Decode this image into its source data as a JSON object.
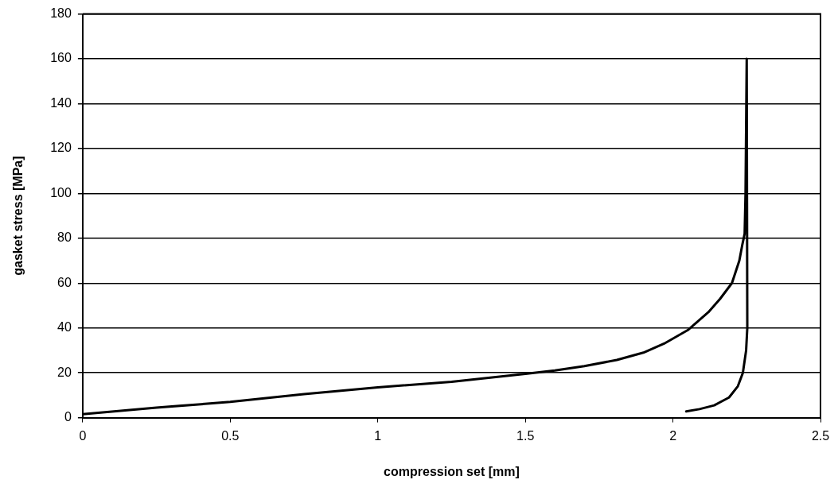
{
  "chart_data": {
    "type": "line",
    "xlabel": "compression set [mm]",
    "ylabel": "gasket stress [MPa]",
    "x": [
      0,
      0.25,
      0.5,
      0.75,
      1,
      1.25,
      1.5,
      1.6,
      1.7,
      1.81,
      1.9,
      1.97,
      2.05,
      2.12,
      2.16,
      2.2,
      2.225,
      2.235,
      2.243,
      2.246,
      2.248,
      2.25,
      2.252,
      2.248,
      2.237,
      2.22,
      2.19,
      2.14,
      2.09,
      2.045
    ],
    "series": [
      {
        "color": "#000000",
        "values": [
          1.5,
          4.5,
          7,
          10.5,
          13.5,
          16,
          19.5,
          21,
          23,
          25.7,
          29,
          33,
          39,
          47,
          53,
          60,
          70,
          77,
          82,
          100,
          130,
          160,
          40,
          30,
          20,
          14,
          9,
          5.5,
          3.8,
          2.8
        ]
      }
    ],
    "xlim": [
      0,
      2.5
    ],
    "xticks": [
      0,
      0.5,
      1,
      1.5,
      2,
      2.5
    ],
    "ylim": [
      0,
      180
    ],
    "yticks": [
      0,
      20,
      40,
      60,
      80,
      100,
      120,
      140,
      160,
      180
    ],
    "grid": "y",
    "legend": false,
    "marker": "none",
    "line_style": "solid"
  }
}
